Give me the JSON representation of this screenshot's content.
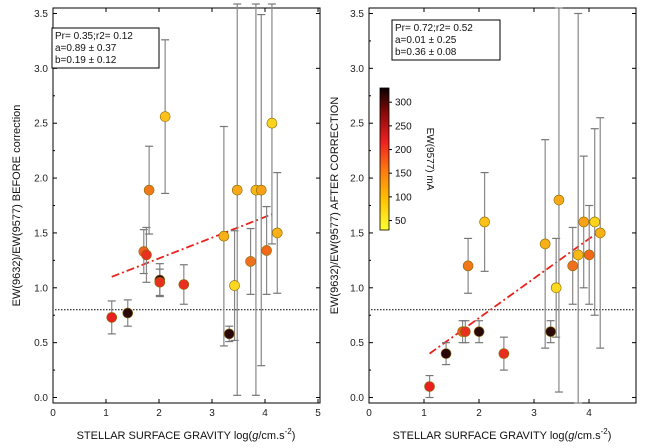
{
  "chart_data": [
    {
      "type": "scatter",
      "xlabel_parts": [
        "STELLAR SURFACE GRAVITY log(",
        "g",
        "/cm.s",
        "-2",
        ")"
      ],
      "ylabel": "EW(9632)/EW(9577) BEFORE correction",
      "xlim": [
        0,
        5
      ],
      "ylim": [
        -0.05,
        3.55
      ],
      "xticks": [
        "0",
        "1",
        "2",
        "3",
        "4",
        "5"
      ],
      "yticks": [
        "0.0",
        "0.5",
        "1.0",
        "1.5",
        "2.0",
        "2.5",
        "3.0",
        "3.5"
      ],
      "reference_line_y": 0.8,
      "stats": [
        "Pr= 0.35;r2= 0.12",
        "a=0.89 ± 0.37",
        "b=0.19 ± 0.12"
      ],
      "fit": {
        "x": [
          1.1,
          4.1
        ],
        "y": [
          1.1,
          1.67
        ]
      },
      "points": [
        {
          "x": 1.1,
          "y": 0.73,
          "err": 0.15,
          "color": "#e82020"
        },
        {
          "x": 1.4,
          "y": 0.77,
          "err": 0.12,
          "color": "#2a0808"
        },
        {
          "x": 1.7,
          "y": 1.33,
          "err": 0.2,
          "color": "#f06020"
        },
        {
          "x": 1.75,
          "y": 1.3,
          "err": 0.25,
          "color": "#e83020"
        },
        {
          "x": 1.8,
          "y": 1.89,
          "err": 0.4,
          "color": "#f07818"
        },
        {
          "x": 2.0,
          "y": 1.07,
          "err": 0.15,
          "color": "#2a0808"
        },
        {
          "x": 2.0,
          "y": 1.05,
          "err": 0.12,
          "color": "#e83020"
        },
        {
          "x": 2.1,
          "y": 2.56,
          "err": 0.7,
          "color": "#fcc018"
        },
        {
          "x": 2.45,
          "y": 1.03,
          "err": 0.18,
          "color": "#e83020"
        },
        {
          "x": 3.2,
          "y": 1.47,
          "err": 1.0,
          "color": "#f8b018"
        },
        {
          "x": 3.3,
          "y": 0.58,
          "err": 0.07,
          "color": "#2a0808"
        },
        {
          "x": 3.4,
          "y": 1.02,
          "err": 0.5,
          "color": "#fcd820"
        },
        {
          "x": 3.45,
          "y": 1.89,
          "err": 1.87,
          "color": "#f8a818"
        },
        {
          "x": 3.7,
          "y": 1.24,
          "err": 0.3,
          "color": "#f07020"
        },
        {
          "x": 3.8,
          "y": 1.89,
          "err": 1.87,
          "color": "#f8b818"
        },
        {
          "x": 3.9,
          "y": 1.89,
          "err": 1.6,
          "color": "#f8a018"
        },
        {
          "x": 4.0,
          "y": 1.34,
          "err": 0.4,
          "color": "#f06818"
        },
        {
          "x": 4.1,
          "y": 2.5,
          "err": 1.1,
          "color": "#fcd420"
        },
        {
          "x": 4.2,
          "y": 1.5,
          "err": 0.55,
          "color": "#f8b018"
        }
      ]
    },
    {
      "type": "scatter",
      "xlabel_parts": [
        "STELLAR SURFACE GRAVITY log(",
        "g",
        "/cm.s",
        "-2",
        ")"
      ],
      "ylabel": "EW(9632)/EW(9577) AFTER CORRECTION",
      "xlim": [
        0,
        4.85
      ],
      "ylim": [
        -0.05,
        3.55
      ],
      "xticks": [
        "0",
        "1",
        "2",
        "3",
        "4"
      ],
      "yticks": [
        "0.0",
        "0.5",
        "1.0",
        "1.5",
        "2.0",
        "2.5",
        "3.0",
        "3.5"
      ],
      "reference_line_y": 0.8,
      "stats": [
        "Pr= 0.72;r2= 0.52",
        "a=0.01 ± 0.25",
        "b=0.36 ± 0.08"
      ],
      "fit": {
        "x": [
          1.1,
          4.2
        ],
        "y": [
          0.4,
          1.52
        ]
      },
      "colorbar": {
        "label": "EW(9577) mA",
        "ticks": [
          "300",
          "250",
          "200",
          "150",
          "100",
          "50"
        ],
        "range": [
          30,
          330
        ]
      },
      "points": [
        {
          "x": 1.1,
          "y": 0.1,
          "err": 0.1,
          "color": "#e82020"
        },
        {
          "x": 1.4,
          "y": 0.4,
          "err": 0.1,
          "color": "#2a0808"
        },
        {
          "x": 1.7,
          "y": 0.6,
          "err": 0.1,
          "color": "#f06020"
        },
        {
          "x": 1.75,
          "y": 0.6,
          "err": 0.1,
          "color": "#e83020"
        },
        {
          "x": 1.8,
          "y": 1.2,
          "err": 0.25,
          "color": "#f07818"
        },
        {
          "x": 2.0,
          "y": 0.6,
          "err": 0.1,
          "color": "#2a0808"
        },
        {
          "x": 2.1,
          "y": 1.6,
          "err": 0.45,
          "color": "#fcc018"
        },
        {
          "x": 2.45,
          "y": 0.4,
          "err": 0.15,
          "color": "#e83020"
        },
        {
          "x": 3.2,
          "y": 1.4,
          "err": 0.95,
          "color": "#f8b018"
        },
        {
          "x": 3.3,
          "y": 0.6,
          "err": 0.1,
          "color": "#2a0808"
        },
        {
          "x": 3.4,
          "y": 1.0,
          "err": 0.45,
          "color": "#fcd820"
        },
        {
          "x": 3.45,
          "y": 1.8,
          "err": 1.75,
          "color": "#f8a818"
        },
        {
          "x": 3.7,
          "y": 1.2,
          "err": 0.35,
          "color": "#f07020"
        },
        {
          "x": 3.8,
          "y": 1.3,
          "err": 2.2,
          "color": "#f8b818"
        },
        {
          "x": 3.9,
          "y": 1.6,
          "err": 0.6,
          "color": "#f8a018"
        },
        {
          "x": 4.0,
          "y": 1.3,
          "err": 0.45,
          "color": "#f06818"
        },
        {
          "x": 4.1,
          "y": 1.6,
          "err": 0.85,
          "color": "#fcd420"
        },
        {
          "x": 4.2,
          "y": 1.5,
          "err": 1.05,
          "color": "#f8b018"
        }
      ]
    }
  ]
}
